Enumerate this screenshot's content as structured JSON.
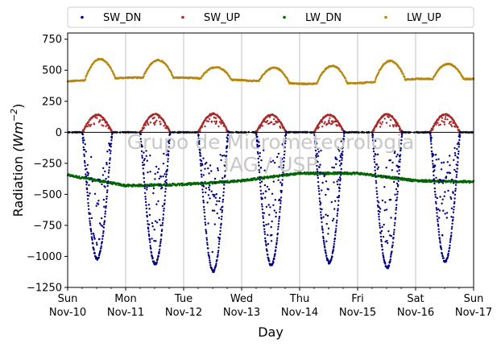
{
  "chart_data": {
    "type": "scatter",
    "xlabel": "Day",
    "ylabel": "Radiation",
    "ylabel_units": "(Wm",
    "ylabel_exp": "−2",
    "ylabel_close": ")",
    "ylim": [
      -1250,
      800
    ],
    "xlim": [
      0,
      7
    ],
    "yticks": [
      -1250,
      -1000,
      -750,
      -500,
      -250,
      0,
      250,
      500,
      750
    ],
    "ytick_labels": [
      "−1250",
      "−1000",
      "−750",
      "−500",
      "−250",
      "0",
      "250",
      "500",
      "750"
    ],
    "xticks": [
      {
        "day": 0,
        "weekday": "Sun",
        "date": "Nov-10"
      },
      {
        "day": 1,
        "weekday": "Mon",
        "date": "Nov-11"
      },
      {
        "day": 2,
        "weekday": "Tue",
        "date": "Nov-12"
      },
      {
        "day": 3,
        "weekday": "Wed",
        "date": "Nov-13"
      },
      {
        "day": 4,
        "weekday": "Thu",
        "date": "Nov-14"
      },
      {
        "day": 5,
        "weekday": "Fri",
        "date": "Nov-15"
      },
      {
        "day": 6,
        "weekday": "Sat",
        "date": "Nov-16"
      },
      {
        "day": 7,
        "weekday": "Sun",
        "date": "Nov-17"
      }
    ],
    "grid": "vertical-major",
    "legend_placement": "top-outside",
    "zero_line": 0,
    "watermark": [
      "Grupo de Micrometeorologia",
      "IAG / USP"
    ],
    "series": [
      {
        "name": "SW_DN",
        "color": "#00007f",
        "daily_min": [
          -1020,
          -1060,
          -1120,
          -1070,
          -1050,
          -1090,
          -1040
        ],
        "night_value": 0
      },
      {
        "name": "SW_UP",
        "color": "#a52a2a",
        "daily_max": [
          140,
          145,
          150,
          140,
          140,
          145,
          145
        ],
        "night_value": 0
      },
      {
        "name": "LW_DN",
        "color": "#006400",
        "daily_values": [
          -345,
          -430,
          -420,
          -390,
          -330,
          -330,
          -390,
          -400
        ]
      },
      {
        "name": "LW_UP",
        "color": "#b8860b",
        "daily_night": [
          410,
          440,
          440,
          420,
          390,
          395,
          430,
          430
        ],
        "daily_peak": [
          590,
          580,
          525,
          520,
          535,
          575,
          550
        ]
      }
    ]
  }
}
